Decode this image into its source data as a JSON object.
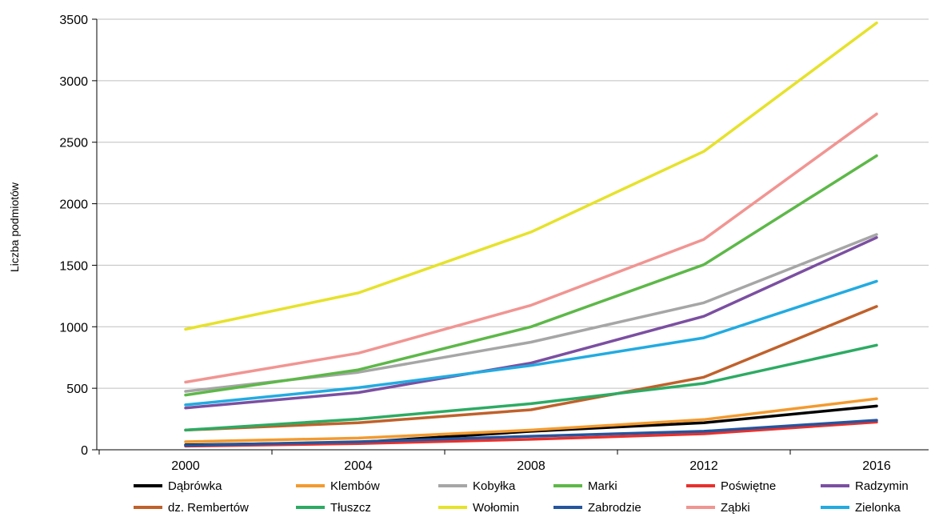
{
  "chart_data": {
    "type": "line",
    "title": "",
    "xlabel": "",
    "ylabel": "Liczba podmiotów",
    "x": [
      2000,
      2004,
      2008,
      2012,
      2016
    ],
    "x_tick_labels": [
      "2000",
      "2004",
      "2008",
      "2012",
      "2016"
    ],
    "ylim": [
      0,
      3500
    ],
    "y_ticks": [
      0,
      500,
      1000,
      1500,
      2000,
      2500,
      3000,
      3500
    ],
    "y_tick_labels": [
      "0",
      "500",
      "1000",
      "1500",
      "2000",
      "2500",
      "3000",
      "3500"
    ],
    "grid": "horizontal",
    "legend_position": "bottom",
    "series": [
      {
        "name": "Dąbrówka",
        "color": "#000000",
        "values": [
          40,
          60,
          150,
          220,
          355
        ]
      },
      {
        "name": "Klembów",
        "color": "#F39A2E",
        "values": [
          65,
          95,
          160,
          245,
          415
        ]
      },
      {
        "name": "Kobyłka",
        "color": "#A6A6A6",
        "values": [
          475,
          630,
          875,
          1195,
          1750
        ]
      },
      {
        "name": "Marki",
        "color": "#5DB848",
        "values": [
          445,
          650,
          1000,
          1505,
          2390
        ]
      },
      {
        "name": "Poświętne",
        "color": "#E8302C",
        "values": [
          30,
          50,
          85,
          130,
          225
        ]
      },
      {
        "name": "Radzymin",
        "color": "#7B4FA1",
        "values": [
          340,
          465,
          705,
          1085,
          1725
        ]
      },
      {
        "name": "dz. Rembertów",
        "color": "#C0612B",
        "values": [
          160,
          220,
          325,
          590,
          1165
        ]
      },
      {
        "name": "Tłuszcz",
        "color": "#2CAB63",
        "values": [
          160,
          250,
          375,
          540,
          850
        ]
      },
      {
        "name": "Wołomin",
        "color": "#E6E22B",
        "values": [
          980,
          1275,
          1770,
          2425,
          3470
        ]
      },
      {
        "name": "Zabrodzie",
        "color": "#25559E",
        "values": [
          35,
          65,
          110,
          150,
          240
        ]
      },
      {
        "name": "Ząbki",
        "color": "#F19592",
        "values": [
          550,
          785,
          1175,
          1710,
          2730
        ]
      },
      {
        "name": "Zielonka",
        "color": "#22ABE1",
        "values": [
          365,
          505,
          685,
          910,
          1370
        ]
      }
    ]
  }
}
